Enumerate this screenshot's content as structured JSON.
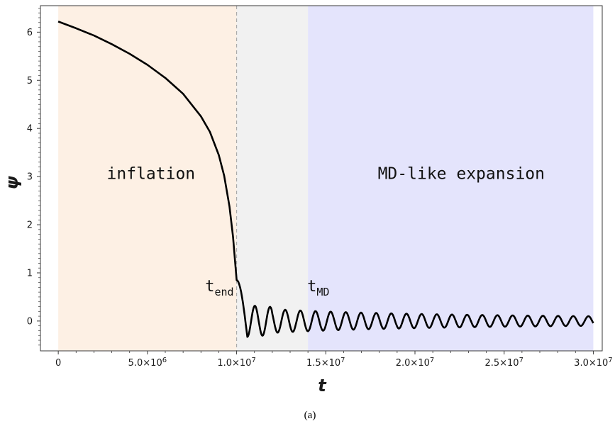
{
  "chart_data": {
    "type": "line",
    "xlabel": "t",
    "ylabel": "ψ",
    "caption": "(a)",
    "xlim": [
      -1000000,
      30500000
    ],
    "ylim": [
      -0.62,
      6.55
    ],
    "x_ticks": [
      {
        "value": 0,
        "mant": "0",
        "exp": ""
      },
      {
        "value": 5000000,
        "mant": "5.0×10",
        "exp": "6"
      },
      {
        "value": 10000000,
        "mant": "1.0×10",
        "exp": "7"
      },
      {
        "value": 15000000,
        "mant": "1.5×10",
        "exp": "7"
      },
      {
        "value": 20000000,
        "mant": "2.0×10",
        "exp": "7"
      },
      {
        "value": 25000000,
        "mant": "2.5×10",
        "exp": "7"
      },
      {
        "value": 30000000,
        "mant": "3.0×10",
        "exp": "7"
      }
    ],
    "y_ticks": [
      0,
      1,
      2,
      3,
      4,
      5,
      6
    ],
    "regions": [
      {
        "label": "inflation",
        "x_start": 0,
        "x_end": 10000000,
        "color": "#fdf0e4"
      },
      {
        "label": "",
        "x_start": 10000000,
        "x_end": 14000000,
        "color": "#f1f1f1"
      },
      {
        "label": "MD-like expansion",
        "x_start": 14000000,
        "x_end": 30000000,
        "color": "#e4e4fc"
      }
    ],
    "markers": [
      {
        "name": "t",
        "sub": "end",
        "x": 10000000,
        "dashed": true
      },
      {
        "name": "t",
        "sub": "MD",
        "x": 14000000,
        "dashed": false
      }
    ],
    "curve": {
      "inflation_segment": {
        "x": [
          0,
          1000000,
          2000000,
          3000000,
          4000000,
          5000000,
          6000000,
          7000000,
          8000000,
          8500000,
          9000000,
          9300000,
          9600000,
          9800000,
          10000000
        ],
        "y": [
          6.22,
          6.08,
          5.93,
          5.75,
          5.55,
          5.32,
          5.05,
          4.72,
          4.25,
          3.93,
          3.45,
          3.02,
          2.38,
          1.75,
          0.85
        ]
      },
      "oscillation": {
        "x_start": 10000000,
        "x_end": 30000000,
        "y_start": 0.85,
        "first_min_x": 10600000,
        "first_min_y": -0.33,
        "first_max_x": 11100000,
        "first_max_y": 0.19,
        "period": 850000,
        "amplitude_decay": "1/t"
      }
    },
    "colors": {
      "line": "#000000",
      "dashed": "#aaaaaa",
      "frame": "#3a3a3a"
    }
  }
}
